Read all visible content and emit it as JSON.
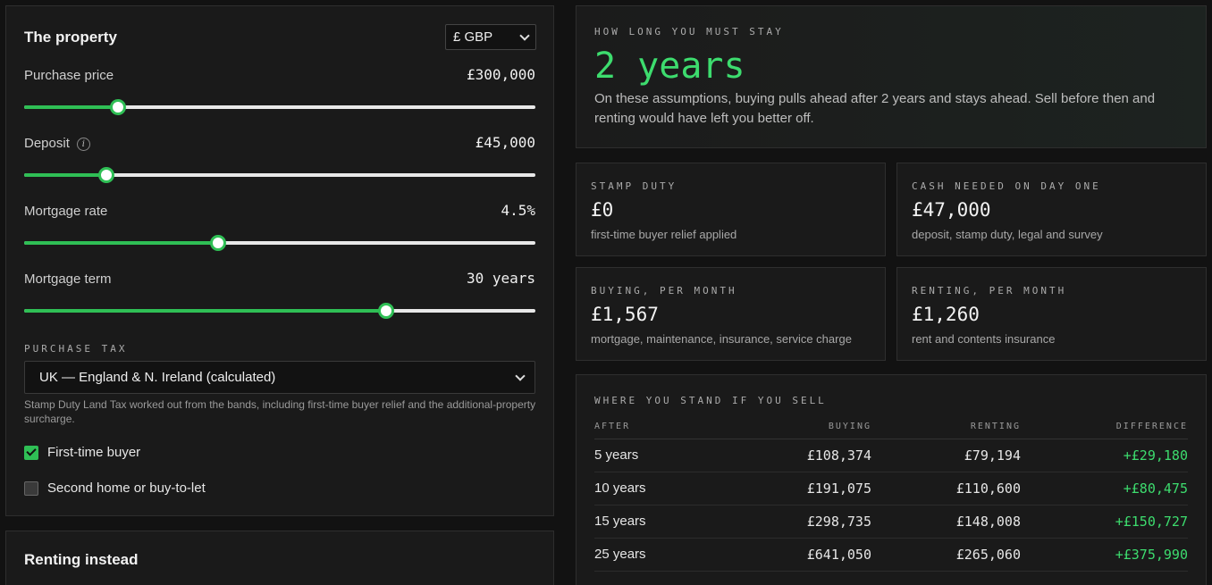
{
  "property": {
    "title": "The property",
    "currency": "£ GBP",
    "fields": [
      {
        "label": "Purchase price",
        "value": "£300,000",
        "fraction": 0.183
      },
      {
        "label": "Deposit",
        "value": "£45,000",
        "fraction": 0.16,
        "info_icon": "info-icon"
      },
      {
        "label": "Mortgage rate",
        "value": "4.5%",
        "fraction": 0.379
      },
      {
        "label": "Mortgage term",
        "value": "30 years",
        "fraction": 0.708
      }
    ],
    "tax_label": "PURCHASE TAX",
    "tax_option": "UK — England & N. Ireland (calculated)",
    "tax_note": "Stamp Duty Land Tax worked out from the bands, including first-time buyer relief and the additional-property surcharge.",
    "checks": [
      {
        "label": "First-time buyer",
        "checked": true
      },
      {
        "label": "Second home or buy-to-let",
        "checked": false
      }
    ]
  },
  "renting": {
    "title": "Renting instead"
  },
  "stay": {
    "eyebrow": "HOW LONG YOU MUST STAY",
    "years": "2 years",
    "desc": "On these assumptions, buying pulls ahead after 2 years and stays ahead. Sell before then and renting would have left you better off."
  },
  "stats": [
    {
      "eyebrow": "STAMP DUTY",
      "value": "£0",
      "sub": "first-time buyer relief applied"
    },
    {
      "eyebrow": "CASH NEEDED ON DAY ONE",
      "value": "£47,000",
      "sub": "deposit, stamp duty, legal and survey"
    },
    {
      "eyebrow": "BUYING, PER MONTH",
      "value": "£1,567",
      "sub": "mortgage, maintenance, insurance, service charge"
    },
    {
      "eyebrow": "RENTING, PER MONTH",
      "value": "£1,260",
      "sub": "rent and contents insurance"
    }
  ],
  "sell": {
    "title": "WHERE YOU STAND IF YOU SELL",
    "headers": [
      "AFTER",
      "BUYING",
      "RENTING",
      "DIFFERENCE"
    ],
    "rows": [
      [
        "5 years",
        "£108,374",
        "£79,194",
        "+£29,180"
      ],
      [
        "10 years",
        "£191,075",
        "£110,600",
        "+£80,475"
      ],
      [
        "15 years",
        "£298,735",
        "£148,008",
        "+£150,727"
      ],
      [
        "25 years",
        "£641,050",
        "£265,060",
        "+£375,990"
      ]
    ]
  },
  "colors": {
    "accent": "#2fbf55",
    "positive": "#3ddc6e",
    "background": "#121212",
    "card": "#1a1a1a"
  }
}
